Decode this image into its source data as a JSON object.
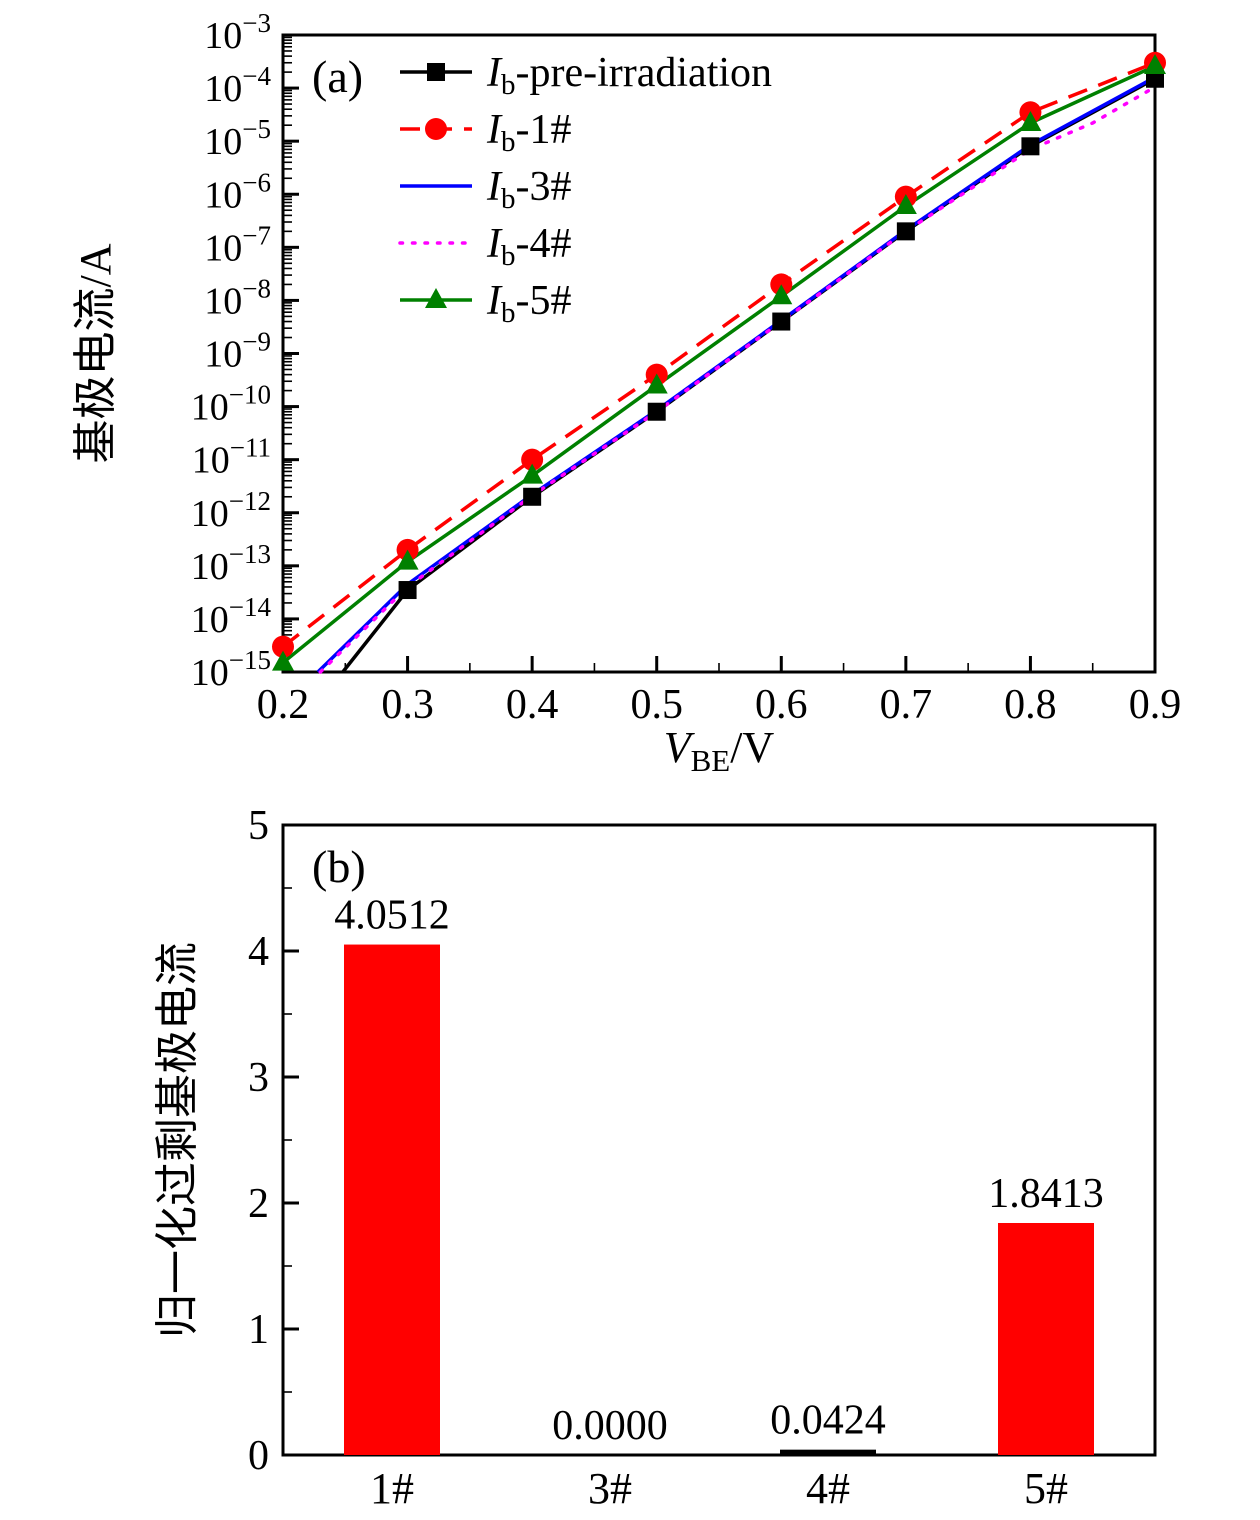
{
  "page": {
    "background": "#ffffff"
  },
  "chart_data": [
    {
      "type": "line",
      "panel_label": "(a)",
      "xlabel": {
        "italic": "V",
        "sub": "BE",
        "rest": "/V"
      },
      "ylabel": "基极电流/A",
      "xlim": [
        0.2,
        0.9
      ],
      "x_major_ticks": [
        0.2,
        0.3,
        0.4,
        0.5,
        0.6,
        0.7,
        0.8,
        0.9
      ],
      "x_minor_step": 0.05,
      "y_axis": {
        "scale": "log",
        "exp_max": -3,
        "exp_min": -15
      },
      "grid": false,
      "legend_position": "top-left",
      "series": [
        {
          "label": {
            "italic": "I",
            "sub": "b",
            "rest": "-pre-irradiation"
          },
          "color": "#000000",
          "line_style": "solid",
          "marker": "square",
          "marker_skip_first": true,
          "x": [
            0.248,
            0.3,
            0.4,
            0.5,
            0.6,
            0.7,
            0.8,
            0.9
          ],
          "y": [
            1e-15,
            3.5e-14,
            2e-12,
            8e-11,
            4e-09,
            2e-07,
            8e-06,
            0.00015
          ]
        },
        {
          "label": {
            "italic": "I",
            "sub": "b",
            "rest": "-1#"
          },
          "color": "#ff0000",
          "line_style": "dashed",
          "marker": "circle",
          "marker_skip_first": false,
          "x": [
            0.2,
            0.3,
            0.4,
            0.5,
            0.6,
            0.7,
            0.8,
            0.9
          ],
          "y": [
            3e-15,
            2e-13,
            1e-11,
            4e-10,
            2e-08,
            9e-07,
            3.5e-05,
            0.0003
          ]
        },
        {
          "label": {
            "italic": "I",
            "sub": "b",
            "rest": "-3#"
          },
          "color": "#0000ff",
          "line_style": "solid",
          "marker": "none",
          "marker_skip_first": false,
          "x": [
            0.228,
            0.3,
            0.4,
            0.5,
            0.6,
            0.7,
            0.8,
            0.9
          ],
          "y": [
            1e-15,
            4.5e-14,
            2.2e-12,
            8.5e-11,
            4.2e-09,
            2.1e-07,
            8.5e-06,
            0.00016
          ]
        },
        {
          "label": {
            "italic": "I",
            "sub": "b",
            "rest": "-4#"
          },
          "color": "#ff00ff",
          "line_style": "dotted",
          "marker": "none",
          "marker_skip_first": false,
          "x": [
            0.23,
            0.3,
            0.4,
            0.5,
            0.6,
            0.7,
            0.8,
            0.85,
            0.9
          ],
          "y": [
            1e-15,
            4e-14,
            2.1e-12,
            8e-11,
            4e-09,
            2e-07,
            7e-06,
            2.2e-05,
            0.000105
          ]
        },
        {
          "label": {
            "italic": "I",
            "sub": "b",
            "rest": "-5#"
          },
          "color": "#008000",
          "line_style": "solid",
          "marker": "triangle",
          "marker_skip_first": false,
          "x": [
            0.2,
            0.3,
            0.4,
            0.5,
            0.6,
            0.7,
            0.8,
            0.9
          ],
          "y": [
            1.5e-15,
            1.2e-13,
            5e-12,
            2.5e-10,
            1.2e-08,
            6e-07,
            2.2e-05,
            0.00026
          ]
        }
      ]
    },
    {
      "type": "bar",
      "panel_label": "(b)",
      "ylabel": "归一化过剩基极电流",
      "categories": [
        "1#",
        "3#",
        "4#",
        "5#"
      ],
      "values": [
        4.0512,
        0.0,
        0.0424,
        1.8413
      ],
      "value_labels": [
        "4.0512",
        "0.0000",
        "0.0424",
        "1.8413"
      ],
      "bar_colors": [
        "#ff0000",
        "#ff0000",
        "#000000",
        "#ff0000"
      ],
      "ylim": [
        0,
        5
      ],
      "y_major_ticks": [
        0,
        1,
        2,
        3,
        4,
        5
      ],
      "y_minor_step": 0.5
    }
  ]
}
